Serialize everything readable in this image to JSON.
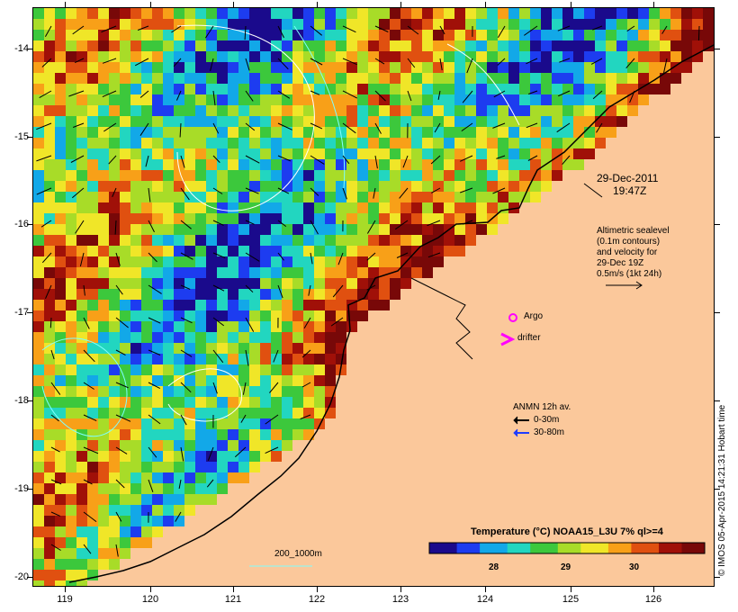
{
  "map": {
    "date": "29-Dec-2011",
    "time": "19:47Z",
    "colors": {
      "land": "#fbc89b",
      "coast": "#000000",
      "contour_cool": "#7fffff",
      "contour_warm": "#ffffff"
    }
  },
  "axes": {
    "lon_ticks": [
      "119",
      "120",
      "121",
      "122",
      "123",
      "124",
      "125",
      "126"
    ],
    "lat_ticks": [
      "-14",
      "-15",
      "-16",
      "-17",
      "-18",
      "-19",
      "-20"
    ]
  },
  "altimetry": {
    "lines": [
      "Altimetric sealevel",
      "(0.1m contours)",
      "and velocity for",
      "29-Dec 19Z",
      "0.5m/s (1kt 24h)"
    ]
  },
  "argo": {
    "label": "Argo",
    "color": "#ff00ff"
  },
  "drifter": {
    "label": "drifter",
    "color": "#ff00ff"
  },
  "anmn": {
    "title": "ANMN 12h av.",
    "items": [
      {
        "label": "0-30m",
        "color": "#000000"
      },
      {
        "label": "30-80m",
        "color": "#1e3cff"
      }
    ]
  },
  "scale_label": "200_1000m",
  "colorbar": {
    "title": "Temperature (°C) NOAA15_L3U 7% ql>=4",
    "ticks": [
      "28",
      "29",
      "30"
    ],
    "colors": [
      "#1a0a8c",
      "#1d3cf0",
      "#12a8e8",
      "#22d6c0",
      "#3cc83c",
      "#a8dc28",
      "#f0e628",
      "#f8a018",
      "#e05010",
      "#a01008",
      "#780808"
    ]
  },
  "credit": "© IMOS 05-Apr-2015 14:21:31 Hobart time"
}
